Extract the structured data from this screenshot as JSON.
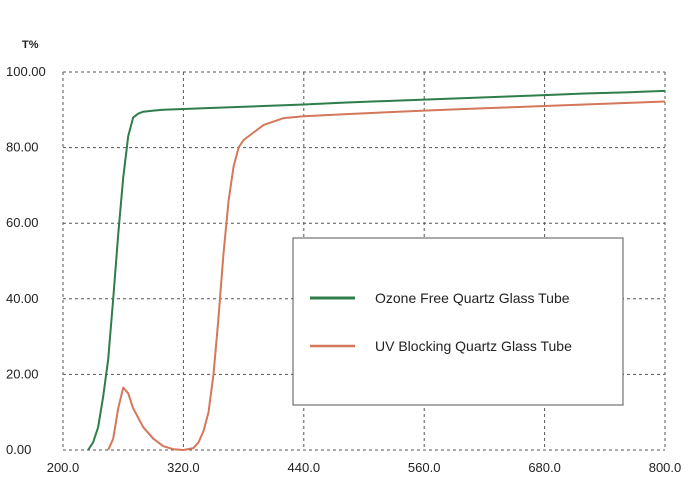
{
  "chart_data": {
    "type": "line",
    "ylabel": "T%",
    "xlabel": "",
    "xlim": [
      200,
      800
    ],
    "ylim": [
      0,
      100
    ],
    "x_ticks": [
      "200.0",
      "320.0",
      "440.0",
      "560.0",
      "680.0",
      "800.0"
    ],
    "y_ticks": [
      "0.00",
      "20.00",
      "40.00",
      "60.00",
      "80.00",
      "100.00"
    ],
    "grid": true,
    "legend_position": "center-right",
    "series": [
      {
        "name": "Ozone Free Quartz Glass Tube",
        "color": "#2e7d4a",
        "points": [
          [
            225,
            0
          ],
          [
            230,
            2
          ],
          [
            235,
            6
          ],
          [
            240,
            14
          ],
          [
            245,
            24
          ],
          [
            250,
            40
          ],
          [
            255,
            57
          ],
          [
            260,
            72
          ],
          [
            265,
            83
          ],
          [
            270,
            88
          ],
          [
            275,
            89
          ],
          [
            280,
            89.5
          ],
          [
            290,
            89.8
          ],
          [
            300,
            90
          ],
          [
            320,
            90.2
          ],
          [
            360,
            90.6
          ],
          [
            400,
            91
          ],
          [
            440,
            91.4
          ],
          [
            480,
            91.9
          ],
          [
            520,
            92.3
          ],
          [
            560,
            92.7
          ],
          [
            600,
            93.1
          ],
          [
            640,
            93.5
          ],
          [
            680,
            93.9
          ],
          [
            720,
            94.3
          ],
          [
            760,
            94.6
          ],
          [
            800,
            95
          ]
        ]
      },
      {
        "name": "UV Blocking Quartz Glass Tube",
        "color": "#d4775a",
        "points": [
          [
            245,
            0
          ],
          [
            250,
            3
          ],
          [
            255,
            11
          ],
          [
            260,
            16.5
          ],
          [
            265,
            15
          ],
          [
            270,
            11
          ],
          [
            280,
            6
          ],
          [
            290,
            3
          ],
          [
            300,
            1
          ],
          [
            310,
            0.2
          ],
          [
            320,
            0
          ],
          [
            330,
            0.5
          ],
          [
            335,
            2
          ],
          [
            340,
            5
          ],
          [
            345,
            10
          ],
          [
            350,
            20
          ],
          [
            355,
            35
          ],
          [
            360,
            52
          ],
          [
            365,
            66
          ],
          [
            370,
            75
          ],
          [
            375,
            80
          ],
          [
            380,
            82
          ],
          [
            390,
            84
          ],
          [
            400,
            86
          ],
          [
            420,
            87.8
          ],
          [
            440,
            88.3
          ],
          [
            480,
            88.8
          ],
          [
            520,
            89.3
          ],
          [
            560,
            89.8
          ],
          [
            600,
            90.2
          ],
          [
            640,
            90.6
          ],
          [
            680,
            91
          ],
          [
            720,
            91.4
          ],
          [
            760,
            91.8
          ],
          [
            800,
            92.2
          ]
        ]
      }
    ]
  }
}
